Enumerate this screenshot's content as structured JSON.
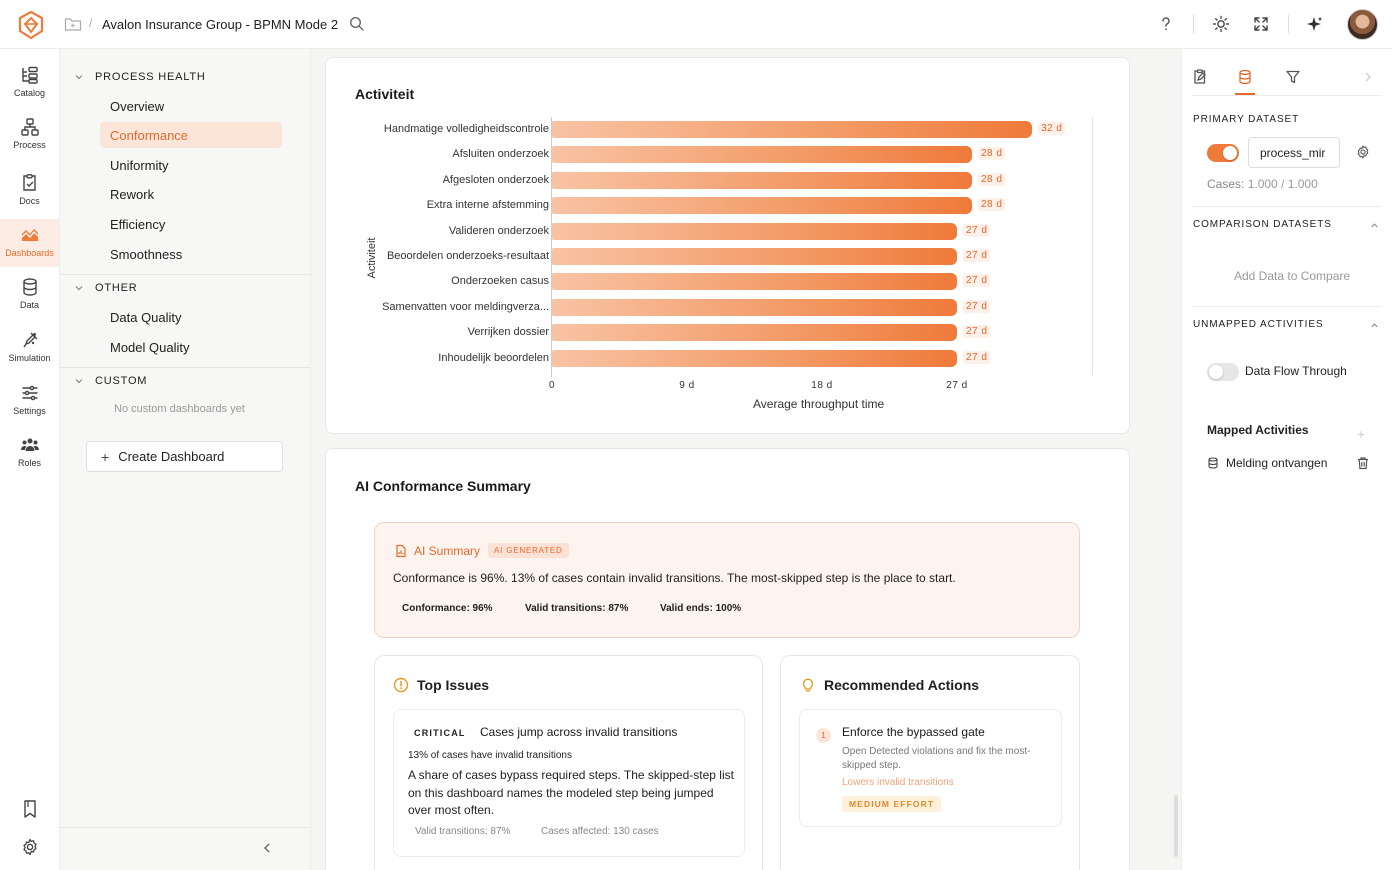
{
  "header": {
    "title": "Avalon Insurance Group - BPMN Mode 2",
    "separator": "/"
  },
  "rail": {
    "items": [
      {
        "label": "Catalog",
        "icon": "catalog-icon"
      },
      {
        "label": "Process",
        "icon": "process-icon"
      },
      {
        "label": "Docs",
        "icon": "docs-icon"
      },
      {
        "label": "Dashboards",
        "icon": "dashboards-icon"
      },
      {
        "label": "Data",
        "icon": "data-icon"
      },
      {
        "label": "Simulation",
        "icon": "simulation-icon"
      },
      {
        "label": "Settings",
        "icon": "settings-sliders-icon"
      },
      {
        "label": "Roles",
        "icon": "roles-icon"
      }
    ]
  },
  "nav": {
    "process_health": "PROCESS HEALTH",
    "ph_items": [
      "Overview",
      "Conformance",
      "Uniformity",
      "Rework",
      "Efficiency",
      "Smoothness"
    ],
    "other": "OTHER",
    "other_items": [
      "Data Quality",
      "Model Quality"
    ],
    "custom": "CUSTOM",
    "custom_empty": "No custom dashboards yet",
    "create_label": "Create Dashboard",
    "create_plus": "+"
  },
  "chart_card": {
    "title": "Activiteit"
  },
  "chart_data": {
    "type": "bar",
    "orientation": "horizontal",
    "title": "Activiteit",
    "xlabel": "Average throughput time",
    "ylabel": "Activiteit",
    "categories": [
      "Handmatige volledigheidscontrole",
      "Afsluiten onderzoek",
      "Afgesloten onderzoek",
      "Extra interne afstemming",
      "Valideren onderzoek",
      "Beoordelen onderzoeks-resultaat",
      "Onderzoeken casus",
      "Samenvatten voor meldingverza...",
      "Verrijken dossier",
      "Inhoudelijk beoordelen"
    ],
    "values": [
      32,
      28,
      28,
      28,
      27,
      27,
      27,
      27,
      27,
      27
    ],
    "value_labels": [
      "32 d",
      "28 d",
      "28 d",
      "28 d",
      "27 d",
      "27 d",
      "27 d",
      "27 d",
      "27 d",
      "27 d"
    ],
    "xticks": [
      "0",
      "9 d",
      "18 d",
      "27 d"
    ],
    "xtick_values": [
      0,
      9,
      18,
      27
    ],
    "xlim": [
      0,
      36
    ],
    "units": "days",
    "grid": false,
    "color": "#ef7a3a"
  },
  "summary_card": {
    "title": "AI Conformance Summary",
    "ai_label": "AI Summary",
    "ai_badge": "AI GENERATED",
    "ai_text": "Conformance is 96%. 13% of cases contain invalid transitions. The most-skipped step is the place to start.",
    "pills": [
      "Conformance: 96%",
      "Valid transitions: 87%",
      "Valid ends: 100%"
    ]
  },
  "top_issues": {
    "title": "Top Issues",
    "severity": "CRITICAL",
    "issue_title": "Cases jump across invalid transitions",
    "issue_sub": "13% of cases have invalid transitions",
    "issue_body": "A share of cases bypass required steps. The skipped-step list on this dashboard names the modeled step being jumped over most often.",
    "meta1": "Valid transitions: 87%",
    "meta2": "Cases affected: 130 cases"
  },
  "recommended": {
    "title": "Recommended Actions",
    "num": "1",
    "action_title": "Enforce the bypassed gate",
    "action_desc": "Open Detected violations and fix the most-skipped step.",
    "action_link": "Lowers invalid transitions",
    "effort": "MEDIUM EFFORT"
  },
  "right_panel": {
    "primary_head": "PRIMARY DATASET",
    "dataset_value": "process_mir",
    "cases_label": "Cases:",
    "cases_value": "1.000 / 1.000",
    "comparison_head": "COMPARISON DATASETS",
    "add_compare": "Add Data to Compare",
    "unmapped_head": "UNMAPPED ACTIVITIES",
    "flow_label": "Data Flow Through",
    "mapped_head": "Mapped Activities",
    "mapped_plus": "+",
    "mapped_item": "Melding ontvangen"
  },
  "colors": {
    "accent": "#ef7a3a",
    "accent_text": "#e8682b"
  }
}
